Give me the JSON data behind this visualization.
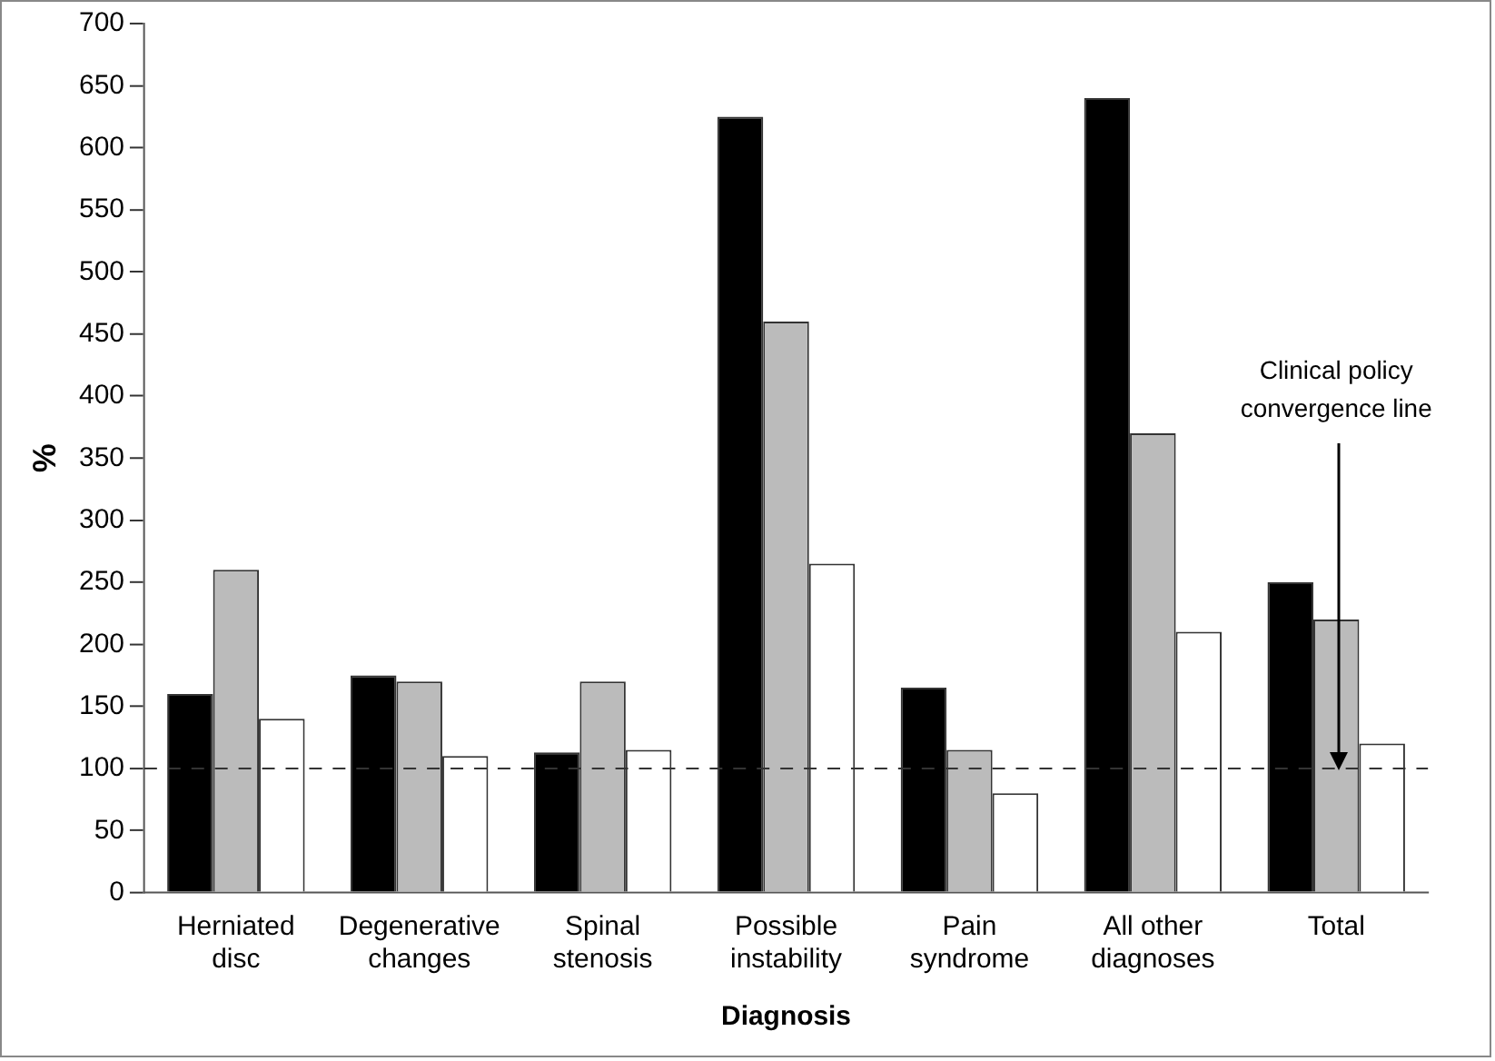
{
  "chart_data": {
    "type": "bar",
    "categories": [
      "Herniated disc",
      "Degenerative changes",
      "Spinal stenosis",
      "Possible instability",
      "Pain syndrome",
      "All other diagnoses",
      "Total"
    ],
    "series": [
      {
        "color": "#000000",
        "values": [
          160,
          175,
          113,
          625,
          165,
          640,
          250
        ]
      },
      {
        "color": "#bbbbbb",
        "values": [
          260,
          170,
          170,
          460,
          115,
          370,
          220
        ]
      },
      {
        "color": "#ffffff",
        "values": [
          140,
          110,
          115,
          265,
          80,
          210,
          120
        ]
      }
    ],
    "xlabel": "Diagnosis",
    "ylabel": "%",
    "ylim": [
      0,
      700
    ],
    "yticks": [
      0,
      50,
      100,
      150,
      200,
      250,
      300,
      350,
      400,
      450,
      500,
      550,
      600,
      650,
      700
    ],
    "grid": false,
    "legend": false,
    "ref_lines": [
      {
        "axis": "y",
        "value": 100,
        "line_style": "dashed"
      }
    ],
    "annotations": [
      {
        "text": "Clinical policy convergence line",
        "x": "Total",
        "y": 100
      }
    ]
  }
}
